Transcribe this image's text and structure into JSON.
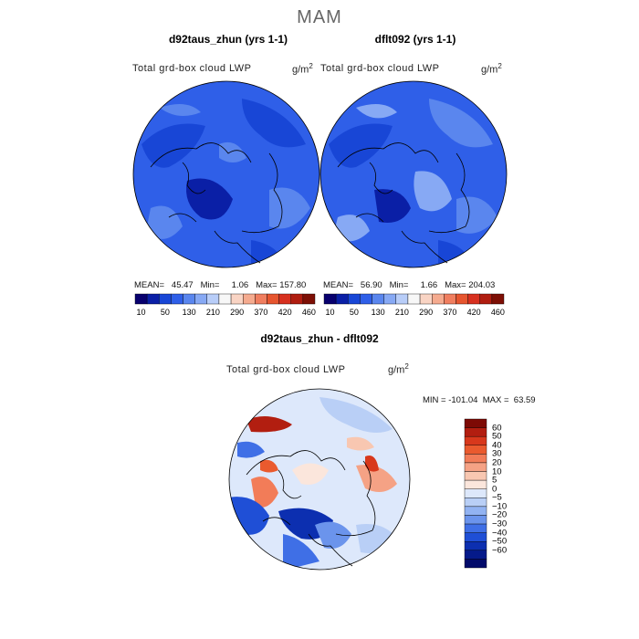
{
  "season": "MAM",
  "panels": [
    {
      "title": "d92taus_zhun (yrs 1-1)",
      "variable": "Total grd-box cloud LWP",
      "units": "g/m",
      "units_exp": "2",
      "stats": "MEAN=   45.47   Min=     1.06   Max= 157.80"
    },
    {
      "title": "dflt092 (yrs 1-1)",
      "variable": "Total grd-box cloud LWP",
      "units": "g/m",
      "units_exp": "2",
      "stats": "MEAN=   56.90   Min=     1.66   Max= 204.03"
    }
  ],
  "colorbar": {
    "colors": [
      "#08006e",
      "#0a1fa6",
      "#1846d6",
      "#2f5fe8",
      "#5a86ee",
      "#87a9f4",
      "#b8cdf8",
      "#f7f7f7",
      "#f9d4c4",
      "#f5ab8f",
      "#f07e5f",
      "#e6552f",
      "#d7301f",
      "#b01d10",
      "#7d0f05"
    ],
    "labels": [
      "10",
      "50",
      "130",
      "210",
      "290",
      "370",
      "420",
      "460"
    ]
  },
  "diff": {
    "title": "d92taus_zhun - dflt092",
    "variable": "Total grd-box cloud LWP",
    "units": "g/m",
    "units_exp": "2",
    "minmax": "MIN = -101.04  MAX =  63.59",
    "colors": [
      "#7d0a05",
      "#b21e10",
      "#d8381c",
      "#ea5a2e",
      "#f27c58",
      "#f5a285",
      "#f8c7b1",
      "#fbe6dc",
      "#dde8fb",
      "#b9cff6",
      "#92b3f2",
      "#6b94ec",
      "#3f6fe6",
      "#1f4fd6",
      "#0c2fb0",
      "#051a8a",
      "#020a6a"
    ],
    "labels": [
      "60",
      "50",
      "40",
      "30",
      "20",
      "10",
      "5",
      "0",
      "−5",
      "−10",
      "−20",
      "−30",
      "−40",
      "−50",
      "−60"
    ]
  }
}
